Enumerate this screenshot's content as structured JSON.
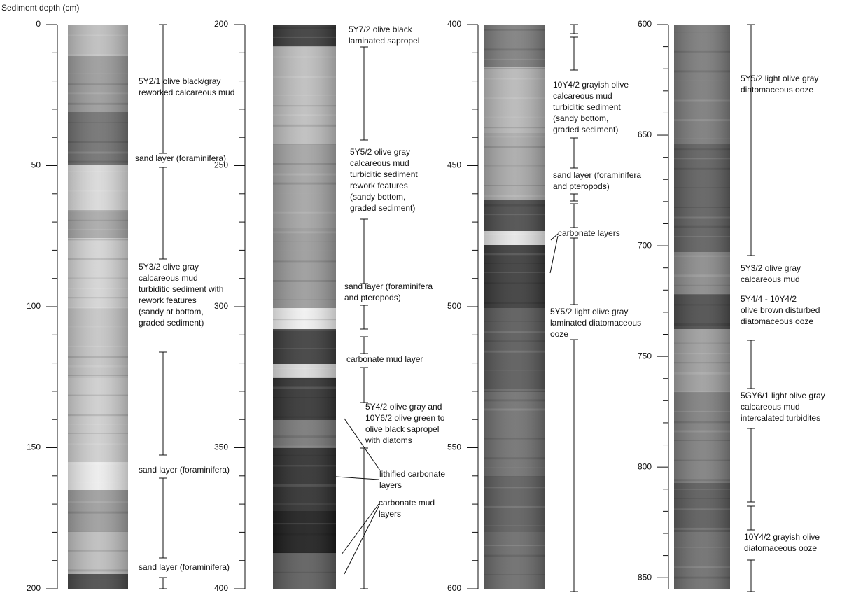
{
  "axis_label": "Sediment depth (cm)",
  "columns": [
    {
      "ylim": [
        0,
        200
      ],
      "yticks": [
        0,
        50,
        100,
        150,
        200
      ],
      "labels": [
        [
          "5Y2/1 olive black/gray",
          "reworked calcareous mud"
        ],
        [
          "sand layer (foraminifera)"
        ],
        [
          "5Y3/2 olive gray",
          "calcareous mud",
          "turbiditic sediment with",
          "rework features",
          "(sandy at bottom,",
          "graded sediment)"
        ],
        [
          "sand layer (foraminifera)"
        ],
        [
          "sand layer (foraminifera)"
        ]
      ]
    },
    {
      "ylim": [
        200,
        400
      ],
      "yticks": [
        200,
        250,
        300,
        350,
        400
      ],
      "labels": [
        [
          "5Y7/2 olive black",
          "laminated sapropel"
        ],
        [
          "5Y5/2 olive gray",
          "calcareous mud",
          "turbiditic sediment",
          "rework features",
          "(sandy bottom,",
          "graded sediment)"
        ],
        [
          "sand layer (foraminifera",
          "and pteropods)"
        ],
        [
          "carbonate mud layer"
        ],
        [
          "5Y4/2 olive gray and",
          "10Y6/2 olive green to",
          "olive black sapropel",
          "with diatoms"
        ],
        [
          "lithified carbonate",
          "layers"
        ],
        [
          "carbonate mud",
          "layers"
        ]
      ]
    },
    {
      "ylim": [
        400,
        600
      ],
      "yticks": [
        400,
        450,
        500,
        550,
        600
      ],
      "labels": [
        [
          "10Y4/2 grayish olive",
          "calcareous mud",
          "turbiditic sediment",
          "(sandy bottom,",
          "graded sediment)"
        ],
        [
          "sand layer (foraminifera",
          "and pteropods)"
        ],
        [
          "carbonate layers"
        ],
        [
          "5Y5/2 light olive gray",
          "laminated diatomaceous",
          "ooze"
        ]
      ]
    },
    {
      "ylim": [
        600,
        855
      ],
      "yticks": [
        600,
        650,
        700,
        750,
        800,
        850
      ],
      "labels": [
        [
          "5Y5/2 light olive gray",
          "diatomaceous ooze"
        ],
        [
          "5Y3/2 olive gray",
          "calcareous mud"
        ],
        [
          "5Y4/4 - 10Y4/2",
          "olive brown disturbed",
          "diatomaceous ooze"
        ],
        [
          "5GY6/1 light olive gray",
          "calcareous mud",
          "intercalated turbidites"
        ],
        [
          "10Y4/2 grayish olive",
          "diatomaceous ooze"
        ]
      ]
    }
  ]
}
